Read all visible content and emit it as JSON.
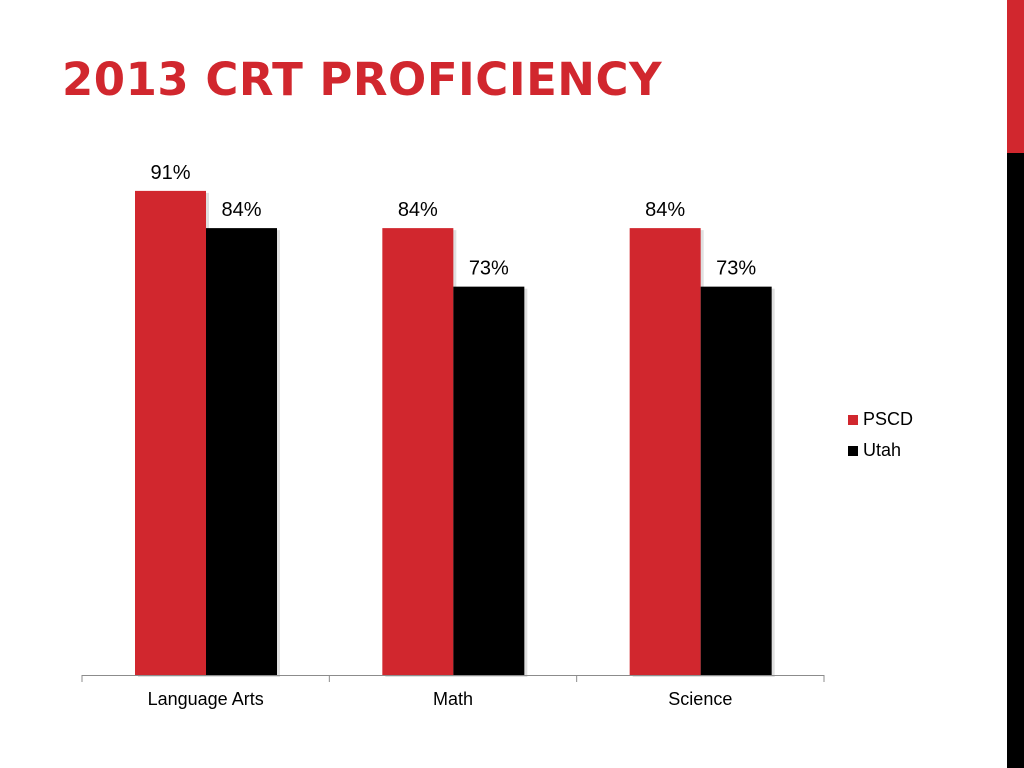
{
  "slide": {
    "title": "2013 CRT PROFICIENCY"
  },
  "colors": {
    "accent": "#d1272e",
    "dark": "#000000",
    "sidebar_top": "#d1272e",
    "sidebar_bottom": "#000000"
  },
  "chart_data": {
    "type": "bar",
    "title": "",
    "xlabel": "",
    "ylabel": "",
    "ylim": [
      0,
      100
    ],
    "grid": false,
    "legend_position": "right",
    "categories": [
      "Language Arts",
      "Math",
      "Science"
    ],
    "series": [
      {
        "name": "PSCD",
        "color": "#d1272e",
        "values": [
          91,
          84,
          84
        ],
        "labels": [
          "91%",
          "84%",
          "84%"
        ]
      },
      {
        "name": "Utah",
        "color": "#000000",
        "values": [
          84,
          73,
          73
        ],
        "labels": [
          "84%",
          "73%",
          "73%"
        ]
      }
    ]
  }
}
